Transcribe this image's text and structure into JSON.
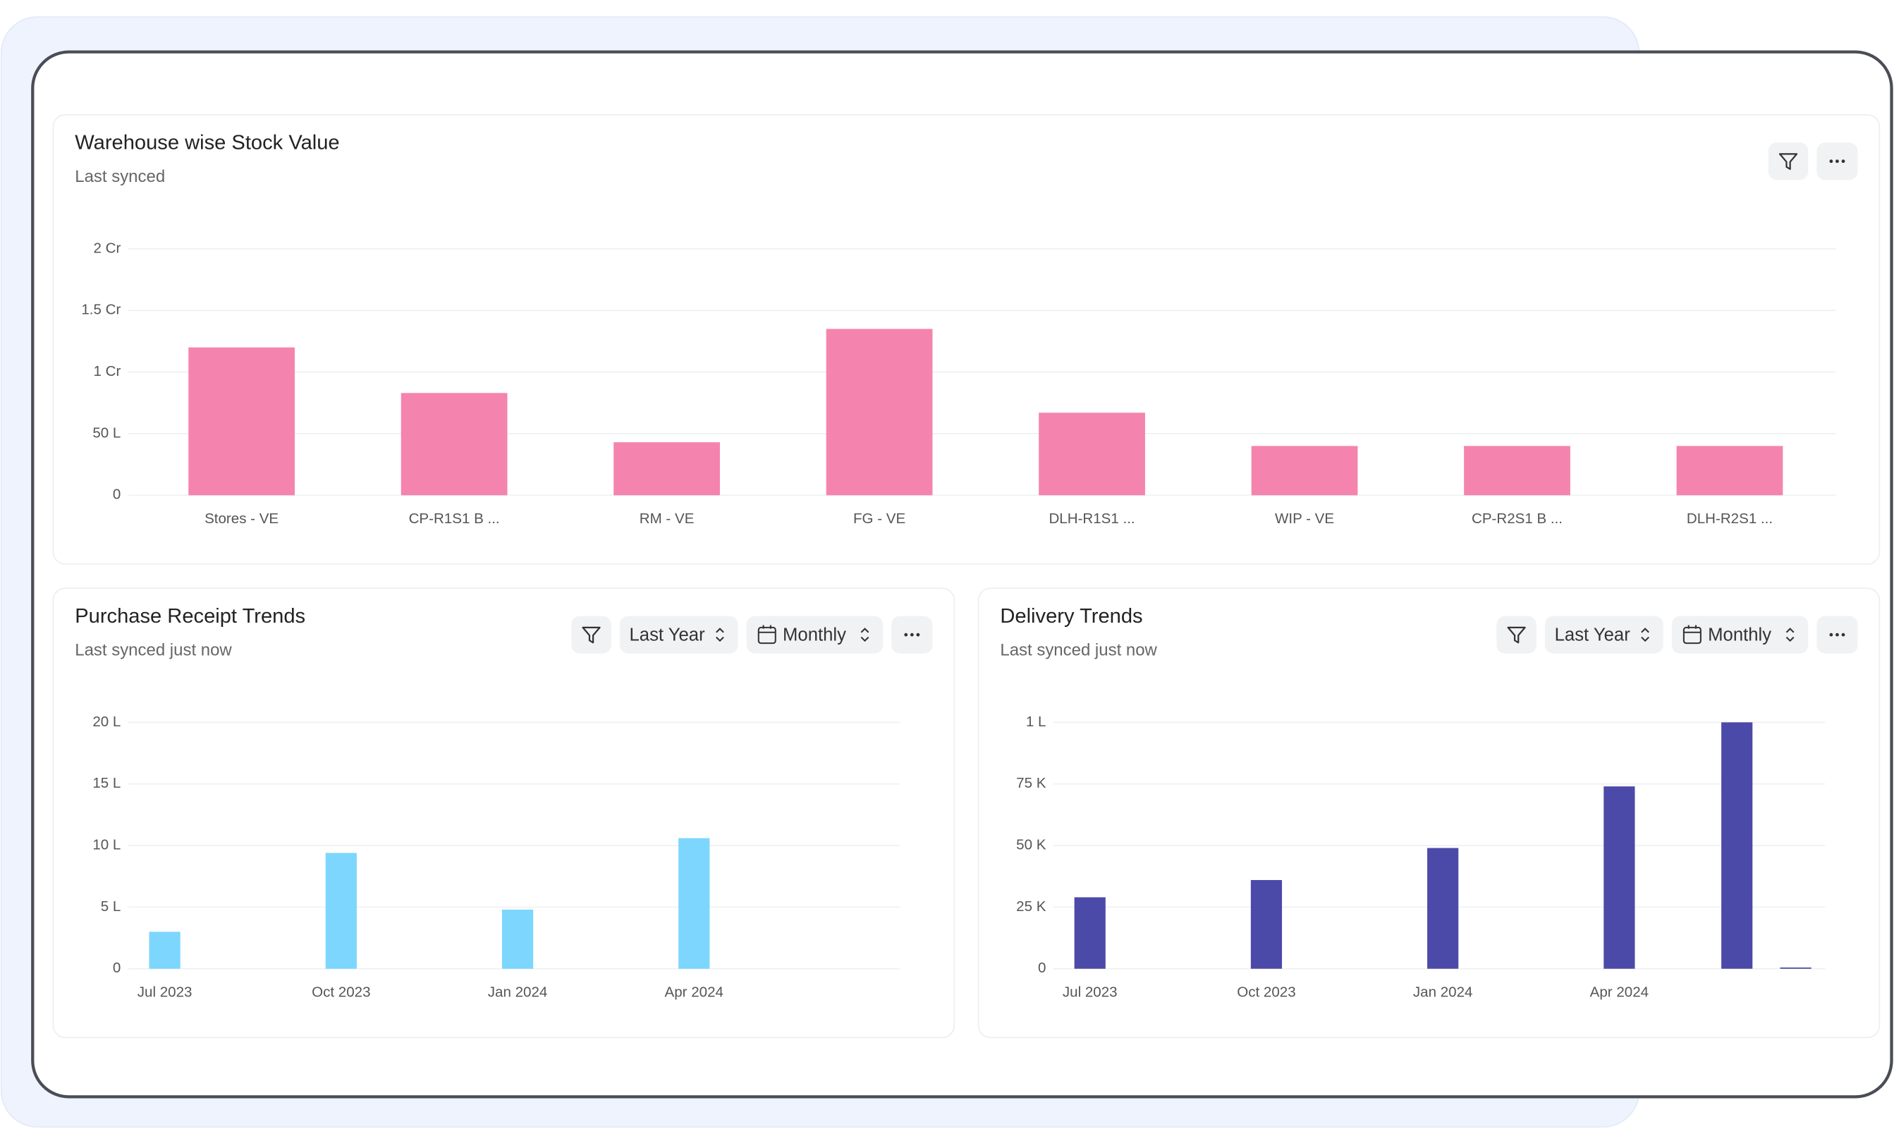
{
  "chart_data": [
    {
      "type": "bar",
      "title": "Warehouse wise Stock Value",
      "subtitle": "Last synced",
      "categories": [
        "Stores - VE",
        "CP-R1S1 B ...",
        "RM - VE",
        "FG - VE",
        "DLH-R1S1 ...",
        "WIP - VE",
        "CP-R2S1 B ...",
        "DLH-R2S1 ..."
      ],
      "values": [
        12000000,
        8300000,
        4300000,
        13500000,
        6700000,
        4000000,
        4000000,
        4000000
      ],
      "color": "#f484ae",
      "ylim": [
        0,
        20000000
      ],
      "yticks": [
        0,
        {
          "value": 5000000,
          "label": "50 L"
        },
        {
          "value": 10000000,
          "label": "1 Cr"
        },
        {
          "value": 15000000,
          "label": "1.5 Cr"
        },
        {
          "value": 20000000,
          "label": "2 Cr"
        }
      ],
      "grid": true
    },
    {
      "type": "bar",
      "title": "Purchase Receipt Trends",
      "subtitle": "Last synced just now",
      "controls": [
        "Last Year",
        "Monthly"
      ],
      "categories": [
        "Jul 2023",
        null,
        null,
        "Oct 2023",
        null,
        null,
        "Jan 2024",
        null,
        null,
        "Apr 2024",
        null,
        null,
        null
      ],
      "values": [
        300000,
        0,
        0,
        940000,
        0,
        0,
        480000,
        0,
        0,
        1060000,
        0,
        0,
        0
      ],
      "color": "#7cd6fd",
      "ylim": [
        0,
        2000000
      ],
      "yticks": [
        0,
        {
          "value": 500000,
          "label": "5 L"
        },
        {
          "value": 1000000,
          "label": "10 L"
        },
        {
          "value": 1500000,
          "label": "15 L"
        },
        {
          "value": 2000000,
          "label": "20 L"
        }
      ],
      "grid": true
    },
    {
      "type": "bar",
      "title": "Delivery Trends",
      "subtitle": "Last synced just now",
      "controls": [
        "Last Year",
        "Monthly"
      ],
      "categories": [
        "Jul 2023",
        null,
        null,
        "Oct 2023",
        null,
        null,
        "Jan 2024",
        null,
        null,
        "Apr 2024",
        null,
        null,
        null
      ],
      "values": [
        29000,
        0,
        0,
        36000,
        0,
        0,
        49000,
        0,
        0,
        74000,
        0,
        100000,
        500
      ],
      "color": "#4c4aa8",
      "ylim": [
        0,
        100000
      ],
      "yticks": [
        0,
        {
          "value": 25000,
          "label": "25 K"
        },
        {
          "value": 50000,
          "label": "50 K"
        },
        {
          "value": 75000,
          "label": "75 K"
        },
        {
          "value": 100000,
          "label": "1 L"
        }
      ],
      "grid": true
    }
  ]
}
